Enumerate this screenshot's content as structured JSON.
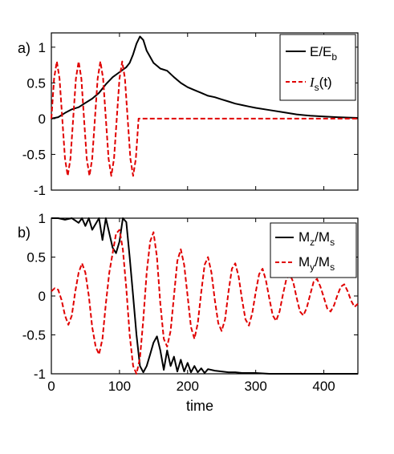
{
  "chart_data": [
    {
      "panel_label": "a)",
      "type": "line",
      "xlim": [
        0,
        450
      ],
      "ylim": [
        -1,
        1.2
      ],
      "yticks": [
        -1,
        -0.5,
        0,
        0.5,
        1
      ],
      "ytick_labels": [
        "-1",
        "-0.5",
        "0",
        "0.5",
        "1"
      ],
      "grid": false,
      "legend_position": "top-right",
      "legend": [
        {
          "main": "E/E",
          "sub": "b",
          "tail": "",
          "color": "#000000",
          "dash": "solid"
        },
        {
          "main": "I",
          "sub": "s",
          "tail": "(t)",
          "color": "#e00000",
          "dash": "dashed"
        }
      ],
      "series": [
        {
          "color": "#000000",
          "dash": "solid",
          "x": [
            0,
            10,
            20,
            30,
            40,
            50,
            60,
            70,
            80,
            90,
            100,
            110,
            115,
            120,
            125,
            130,
            135,
            140,
            150,
            160,
            170,
            180,
            190,
            200,
            210,
            220,
            230,
            240,
            250,
            260,
            270,
            280,
            290,
            300,
            320,
            340,
            360,
            380,
            400,
            420,
            450
          ],
          "y": [
            0,
            0.02,
            0.08,
            0.13,
            0.16,
            0.22,
            0.28,
            0.36,
            0.48,
            0.58,
            0.65,
            0.72,
            0.78,
            0.9,
            1.05,
            1.15,
            1.1,
            0.95,
            0.78,
            0.7,
            0.67,
            0.58,
            0.5,
            0.44,
            0.4,
            0.36,
            0.32,
            0.3,
            0.27,
            0.24,
            0.21,
            0.19,
            0.17,
            0.15,
            0.12,
            0.09,
            0.06,
            0.04,
            0.03,
            0.02,
            0.01
          ]
        },
        {
          "color": "#e00000",
          "dash": "dashed",
          "x": [
            0,
            4,
            8,
            12,
            16,
            20,
            24,
            28,
            32,
            36,
            40,
            44,
            48,
            52,
            56,
            60,
            64,
            68,
            72,
            76,
            80,
            84,
            88,
            92,
            96,
            100,
            104,
            108,
            112,
            116,
            120,
            124,
            128,
            132,
            136,
            140,
            450
          ],
          "y": [
            0,
            0.56,
            0.8,
            0.56,
            0,
            -0.56,
            -0.8,
            -0.56,
            0,
            0.56,
            0.8,
            0.56,
            0,
            -0.56,
            -0.8,
            -0.56,
            0,
            0.56,
            0.8,
            0.56,
            0,
            -0.56,
            -0.8,
            -0.56,
            0,
            0.56,
            0.8,
            0.56,
            0,
            -0.56,
            -0.8,
            -0.56,
            0,
            0,
            0,
            0,
            0
          ]
        }
      ]
    },
    {
      "panel_label": "b)",
      "type": "line",
      "xlim": [
        0,
        450
      ],
      "ylim": [
        -1,
        1
      ],
      "xticks": [
        0,
        100,
        200,
        300,
        400
      ],
      "xtick_labels": [
        "0",
        "100",
        "200",
        "300",
        "400"
      ],
      "yticks": [
        -1,
        -0.5,
        0,
        0.5,
        1
      ],
      "ytick_labels": [
        "-1",
        "-0.5",
        "0",
        "0.5",
        "1"
      ],
      "xlabel": "time",
      "grid": false,
      "legend_position": "top-right",
      "legend": [
        {
          "main": "M",
          "sub": "z",
          "tail": "/M",
          "sub2": "s",
          "color": "#000000",
          "dash": "solid"
        },
        {
          "main": "M",
          "sub": "y",
          "tail": "/M",
          "sub2": "s",
          "color": "#e00000",
          "dash": "dashed"
        }
      ],
      "series": [
        {
          "color": "#000000",
          "dash": "solid",
          "x": [
            0,
            10,
            20,
            30,
            40,
            45,
            50,
            55,
            60,
            70,
            75,
            80,
            90,
            95,
            100,
            105,
            110,
            115,
            120,
            125,
            130,
            135,
            140,
            145,
            150,
            155,
            160,
            165,
            170,
            175,
            180,
            185,
            190,
            195,
            200,
            205,
            210,
            215,
            220,
            225,
            230,
            240,
            250,
            260,
            270,
            280,
            290,
            300,
            320,
            340,
            360,
            380,
            400,
            420,
            450
          ],
          "y": [
            1,
            1,
            0.98,
            1,
            0.94,
            1,
            0.9,
            1,
            0.85,
            1,
            0.72,
            1,
            0.62,
            0.55,
            0.7,
            1,
            0.95,
            0.5,
            0,
            -0.5,
            -0.9,
            -0.98,
            -0.9,
            -0.75,
            -0.6,
            -0.52,
            -0.7,
            -0.95,
            -0.7,
            -0.9,
            -0.78,
            -0.97,
            -0.82,
            -0.97,
            -0.86,
            -0.98,
            -0.9,
            -0.98,
            -0.93,
            -0.99,
            -0.94,
            -0.96,
            -0.97,
            -0.98,
            -0.98,
            -0.99,
            -0.99,
            -0.99,
            -1,
            -1,
            -1,
            -1,
            -1,
            -1,
            -1
          ]
        },
        {
          "color": "#e00000",
          "dash": "dashed",
          "x": [
            0,
            5,
            10,
            15,
            20,
            25,
            30,
            35,
            40,
            45,
            50,
            55,
            60,
            65,
            70,
            75,
            80,
            85,
            90,
            95,
            100,
            105,
            110,
            115,
            120,
            125,
            130,
            135,
            140,
            145,
            150,
            155,
            160,
            165,
            170,
            175,
            180,
            185,
            190,
            195,
            200,
            205,
            210,
            215,
            220,
            225,
            230,
            235,
            240,
            245,
            250,
            255,
            260,
            265,
            270,
            275,
            280,
            285,
            290,
            295,
            300,
            305,
            310,
            315,
            320,
            325,
            330,
            335,
            340,
            345,
            350,
            355,
            360,
            365,
            370,
            375,
            380,
            385,
            390,
            395,
            400,
            405,
            410,
            415,
            420,
            425,
            430,
            435,
            440,
            445,
            450
          ],
          "y": [
            0.06,
            0.1,
            0.08,
            -0.05,
            -0.25,
            -0.37,
            -0.25,
            0.05,
            0.3,
            0.42,
            0.3,
            0.0,
            -0.4,
            -0.65,
            -0.75,
            -0.55,
            -0.1,
            0.3,
            0.55,
            0.8,
            0.85,
            0.6,
            0.1,
            -0.5,
            -0.9,
            -1.0,
            -0.8,
            -0.3,
            0.3,
            0.7,
            0.82,
            0.5,
            -0.1,
            -0.55,
            -0.65,
            -0.45,
            0.0,
            0.45,
            0.6,
            0.4,
            0.0,
            -0.4,
            -0.55,
            -0.35,
            0.05,
            0.4,
            0.5,
            0.3,
            -0.05,
            -0.35,
            -0.45,
            -0.3,
            0.05,
            0.35,
            0.42,
            0.25,
            -0.05,
            -0.3,
            -0.38,
            -0.22,
            0.05,
            0.28,
            0.35,
            0.2,
            -0.03,
            -0.25,
            -0.32,
            -0.2,
            0.02,
            0.22,
            0.28,
            0.18,
            -0.02,
            -0.2,
            -0.25,
            -0.15,
            0.02,
            0.18,
            0.22,
            0.12,
            -0.02,
            -0.16,
            -0.2,
            -0.12,
            0.01,
            0.12,
            0.15,
            0.06,
            -0.06,
            -0.14,
            -0.1
          ]
        }
      ]
    }
  ]
}
